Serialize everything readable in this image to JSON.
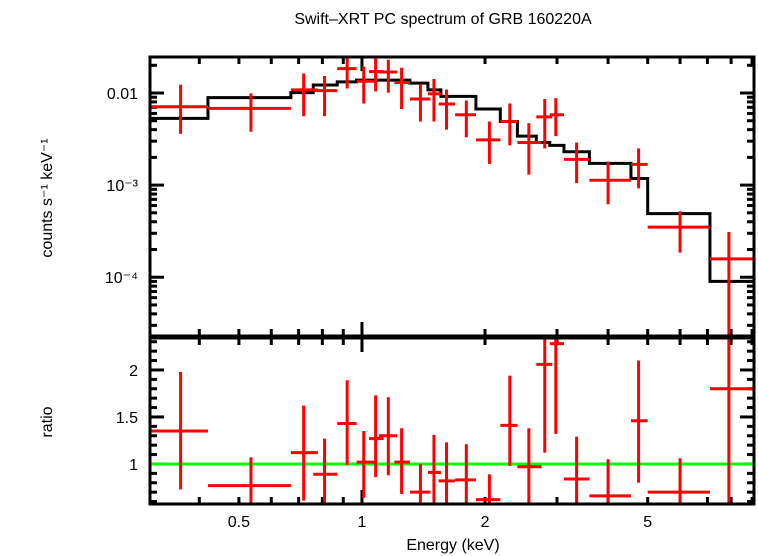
{
  "chart_data": [
    {
      "type": "scatter",
      "panel": "spectrum",
      "title": "Swift–XRT PC spectrum of GRB 160220A",
      "xlabel": "Energy (keV)",
      "ylabel": "counts s⁻¹ keV⁻¹",
      "xscale": "log",
      "yscale": "log",
      "xlim": [
        0.303,
        9.1
      ],
      "ylim": [
        2.3e-05,
        0.0246
      ],
      "ytick_labels": [
        {
          "value": 0.01,
          "label": "0.01"
        },
        {
          "value": 0.001,
          "label": "10⁻³"
        },
        {
          "value": 0.0001,
          "label": "10⁻⁴"
        }
      ],
      "colors": {
        "data": "#ff0000",
        "model": "#000000"
      },
      "series": [
        {
          "name": "data",
          "points": [
            {
              "xlo": 0.303,
              "xhi": 0.42,
              "x": 0.36,
              "y": 0.0071,
              "ylo": 0.0036,
              "yhi": 0.0123
            },
            {
              "xlo": 0.42,
              "xhi": 0.67,
              "x": 0.535,
              "y": 0.0068,
              "ylo": 0.0038,
              "yhi": 0.0099
            },
            {
              "xlo": 0.67,
              "xhi": 0.78,
              "x": 0.72,
              "y": 0.0108,
              "ylo": 0.0056,
              "yhi": 0.0163
            },
            {
              "xlo": 0.76,
              "xhi": 0.87,
              "x": 0.81,
              "y": 0.0106,
              "ylo": 0.0056,
              "yhi": 0.0153
            },
            {
              "xlo": 0.87,
              "xhi": 0.97,
              "x": 0.92,
              "y": 0.0184,
              "ylo": 0.0112,
              "yhi": 0.0246
            },
            {
              "xlo": 0.97,
              "xhi": 1.08,
              "x": 1.01,
              "y": 0.0134,
              "ylo": 0.0077,
              "yhi": 0.0194
            },
            {
              "xlo": 1.04,
              "xhi": 1.13,
              "x": 1.08,
              "y": 0.0171,
              "ylo": 0.0104,
              "yhi": 0.0246
            },
            {
              "xlo": 1.1,
              "xhi": 1.22,
              "x": 1.16,
              "y": 0.0169,
              "ylo": 0.0101,
              "yhi": 0.023
            },
            {
              "xlo": 1.2,
              "xhi": 1.31,
              "x": 1.25,
              "y": 0.013,
              "ylo": 0.0067,
              "yhi": 0.0188
            },
            {
              "xlo": 1.31,
              "xhi": 1.47,
              "x": 1.39,
              "y": 0.0086,
              "ylo": 0.0049,
              "yhi": 0.0125
            },
            {
              "xlo": 1.45,
              "xhi": 1.56,
              "x": 1.5,
              "y": 0.0098,
              "ylo": 0.0049,
              "yhi": 0.0142
            },
            {
              "xlo": 1.54,
              "xhi": 1.69,
              "x": 1.61,
              "y": 0.0076,
              "ylo": 0.004,
              "yhi": 0.0109
            },
            {
              "xlo": 1.69,
              "xhi": 1.9,
              "x": 1.8,
              "y": 0.0058,
              "ylo": 0.0033,
              "yhi": 0.0083
            },
            {
              "xlo": 1.9,
              "xhi": 2.18,
              "x": 2.05,
              "y": 0.0031,
              "ylo": 0.0017,
              "yhi": 0.0049
            },
            {
              "xlo": 2.18,
              "xhi": 2.4,
              "x": 2.3,
              "y": 0.0049,
              "ylo": 0.0027,
              "yhi": 0.0077
            },
            {
              "xlo": 2.4,
              "xhi": 2.75,
              "x": 2.56,
              "y": 0.0029,
              "ylo": 0.0013,
              "yhi": 0.0047
            },
            {
              "xlo": 2.67,
              "xhi": 2.92,
              "x": 2.8,
              "y": 0.0055,
              "ylo": 0.0025,
              "yhi": 0.0086
            },
            {
              "xlo": 2.88,
              "xhi": 3.12,
              "x": 2.98,
              "y": 0.0058,
              "ylo": 0.0034,
              "yhi": 0.0088
            },
            {
              "xlo": 3.12,
              "xhi": 3.6,
              "x": 3.35,
              "y": 0.0019,
              "ylo": 0.00105,
              "yhi": 0.0029
            },
            {
              "xlo": 3.6,
              "xhi": 4.55,
              "x": 4.0,
              "y": 0.00113,
              "ylo": 0.00062,
              "yhi": 0.0018
            },
            {
              "xlo": 4.55,
              "xhi": 5.0,
              "x": 4.75,
              "y": 0.00168,
              "ylo": 0.00092,
              "yhi": 0.0025
            },
            {
              "xlo": 5.0,
              "xhi": 7.1,
              "x": 6.0,
              "y": 0.00035,
              "ylo": 0.000185,
              "yhi": 0.00052
            },
            {
              "xlo": 7.1,
              "xhi": 9.1,
              "x": 7.9,
              "y": 0.000158,
              "ylo": 2.3e-05,
              "yhi": 0.00031
            }
          ]
        },
        {
          "name": "model",
          "drawstyle": "steps",
          "steps": [
            {
              "xlo": 0.303,
              "xhi": 0.42,
              "y": 0.0053
            },
            {
              "xlo": 0.42,
              "xhi": 0.67,
              "y": 0.0089
            },
            {
              "xlo": 0.67,
              "xhi": 0.76,
              "y": 0.0101
            },
            {
              "xlo": 0.76,
              "xhi": 0.87,
              "y": 0.0122
            },
            {
              "xlo": 0.87,
              "xhi": 0.97,
              "y": 0.0132
            },
            {
              "xlo": 0.97,
              "xhi": 1.31,
              "y": 0.0138
            },
            {
              "xlo": 1.31,
              "xhi": 1.45,
              "y": 0.0128
            },
            {
              "xlo": 1.45,
              "xhi": 1.56,
              "y": 0.0108
            },
            {
              "xlo": 1.56,
              "xhi": 1.9,
              "y": 0.0092
            },
            {
              "xlo": 1.9,
              "xhi": 2.18,
              "y": 0.0067
            },
            {
              "xlo": 2.18,
              "xhi": 2.4,
              "y": 0.0049
            },
            {
              "xlo": 2.4,
              "xhi": 2.67,
              "y": 0.0034
            },
            {
              "xlo": 2.67,
              "xhi": 2.88,
              "y": 0.0029
            },
            {
              "xlo": 2.88,
              "xhi": 3.12,
              "y": 0.0027
            },
            {
              "xlo": 3.12,
              "xhi": 3.6,
              "y": 0.0023
            },
            {
              "xlo": 3.6,
              "xhi": 4.55,
              "y": 0.00172
            },
            {
              "xlo": 4.55,
              "xhi": 5.0,
              "y": 0.00118
            },
            {
              "xlo": 5.0,
              "xhi": 7.1,
              "y": 0.00049
            },
            {
              "xlo": 7.1,
              "xhi": 9.1,
              "y": 9e-05
            }
          ]
        }
      ]
    },
    {
      "type": "scatter",
      "panel": "ratio",
      "xlabel": "Energy (keV)",
      "ylabel": "ratio",
      "xscale": "log",
      "yscale": "linear",
      "xlim": [
        0.303,
        9.1
      ],
      "ylim": [
        0.574,
        2.34
      ],
      "xtick_labels": [
        {
          "value": 0.5,
          "label": "0.5"
        },
        {
          "value": 1,
          "label": "1"
        },
        {
          "value": 2,
          "label": "2"
        },
        {
          "value": 5,
          "label": "5"
        }
      ],
      "ytick_labels": [
        {
          "value": 1,
          "label": "1"
        },
        {
          "value": 1.5,
          "label": "1.5"
        },
        {
          "value": 2,
          "label": "2"
        }
      ],
      "reference_line": {
        "y": 1,
        "color": "#00ff00"
      },
      "colors": {
        "data": "#ff0000"
      },
      "series": [
        {
          "name": "ratio",
          "points": [
            {
              "xlo": 0.303,
              "xhi": 0.42,
              "x": 0.36,
              "y": 1.35,
              "ylo": 0.73,
              "yhi": 1.98
            },
            {
              "xlo": 0.42,
              "xhi": 0.67,
              "x": 0.535,
              "y": 0.77,
              "ylo": 0.574,
              "yhi": 1.07
            },
            {
              "xlo": 0.67,
              "xhi": 0.78,
              "x": 0.72,
              "y": 1.12,
              "ylo": 0.61,
              "yhi": 1.62
            },
            {
              "xlo": 0.76,
              "xhi": 0.87,
              "x": 0.81,
              "y": 0.89,
              "ylo": 0.574,
              "yhi": 1.27
            },
            {
              "xlo": 0.87,
              "xhi": 0.97,
              "x": 0.92,
              "y": 1.43,
              "ylo": 0.99,
              "yhi": 1.89
            },
            {
              "xlo": 0.97,
              "xhi": 1.08,
              "x": 1.01,
              "y": 1.02,
              "ylo": 0.64,
              "yhi": 1.35
            },
            {
              "xlo": 1.04,
              "xhi": 1.13,
              "x": 1.08,
              "y": 1.27,
              "ylo": 0.86,
              "yhi": 1.73
            },
            {
              "xlo": 1.1,
              "xhi": 1.22,
              "x": 1.16,
              "y": 1.3,
              "ylo": 0.88,
              "yhi": 1.71
            },
            {
              "xlo": 1.2,
              "xhi": 1.31,
              "x": 1.25,
              "y": 1.02,
              "ylo": 0.68,
              "yhi": 1.38
            },
            {
              "xlo": 1.31,
              "xhi": 1.47,
              "x": 1.39,
              "y": 0.7,
              "ylo": 0.574,
              "yhi": 1.0
            },
            {
              "xlo": 1.45,
              "xhi": 1.56,
              "x": 1.5,
              "y": 0.91,
              "ylo": 0.574,
              "yhi": 1.31
            },
            {
              "xlo": 1.54,
              "xhi": 1.69,
              "x": 1.61,
              "y": 0.82,
              "ylo": 0.574,
              "yhi": 1.23
            },
            {
              "xlo": 1.69,
              "xhi": 1.9,
              "x": 1.8,
              "y": 0.83,
              "ylo": 0.574,
              "yhi": 1.21
            },
            {
              "xlo": 1.9,
              "xhi": 2.18,
              "x": 2.05,
              "y": 0.62,
              "ylo": 0.574,
              "yhi": 0.89
            },
            {
              "xlo": 2.18,
              "xhi": 2.4,
              "x": 2.3,
              "y": 1.41,
              "ylo": 0.98,
              "yhi": 1.94
            },
            {
              "xlo": 2.4,
              "xhi": 2.75,
              "x": 2.56,
              "y": 0.97,
              "ylo": 0.574,
              "yhi": 1.38
            },
            {
              "xlo": 2.67,
              "xhi": 2.92,
              "x": 2.8,
              "y": 2.06,
              "ylo": 1.12,
              "yhi": 2.34
            },
            {
              "xlo": 2.88,
              "xhi": 3.12,
              "x": 2.98,
              "y": 2.28,
              "ylo": 1.32,
              "yhi": 2.34
            },
            {
              "xlo": 3.12,
              "xhi": 3.6,
              "x": 3.35,
              "y": 0.84,
              "ylo": 0.574,
              "yhi": 1.29
            },
            {
              "xlo": 3.6,
              "xhi": 4.55,
              "x": 4.0,
              "y": 0.66,
              "ylo": 0.574,
              "yhi": 1.05
            },
            {
              "xlo": 4.55,
              "xhi": 5.0,
              "x": 4.75,
              "y": 1.46,
              "ylo": 0.8,
              "yhi": 2.1
            },
            {
              "xlo": 5.0,
              "xhi": 7.1,
              "x": 6.0,
              "y": 0.7,
              "ylo": 0.574,
              "yhi": 1.06
            },
            {
              "xlo": 7.1,
              "xhi": 9.1,
              "x": 7.9,
              "y": 1.8,
              "ylo": 0.574,
              "yhi": 2.34
            }
          ]
        }
      ]
    }
  ]
}
